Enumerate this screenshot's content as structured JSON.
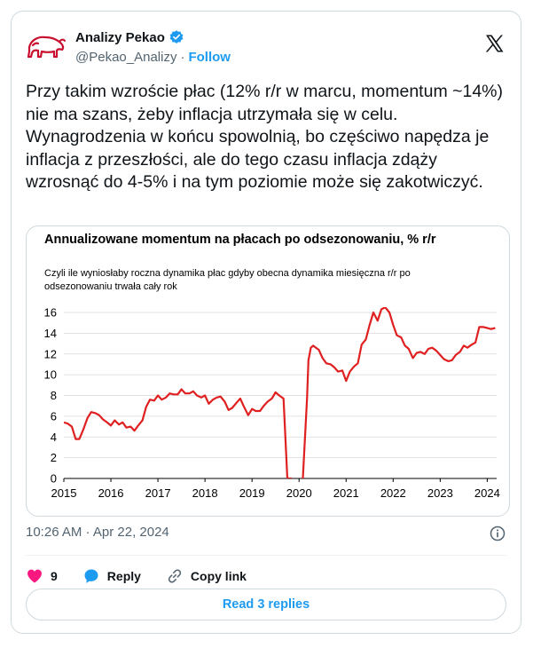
{
  "author": {
    "name": "Analizy Pekao",
    "handle": "@Pekao_Analizy",
    "separator": "·",
    "follow_label": "Follow",
    "verified": true,
    "brand_color": "#c8102e"
  },
  "tweet": {
    "text": "Przy takim wzroście płac (12% r/r w marcu, momentum ~14%) nie ma szans, żeby inflacja utrzymała się w celu. Wynagrodzenia w końcu spowolnią, bo częściwo napędza je inflacja z przeszłości, ale do tego czasu inflacja zdąży wzrosnąć do 4-5% i na tym poziomie może się zakotwiczyć.",
    "timestamp": "10:26 AM · Apr 22, 2024"
  },
  "actions": {
    "likes": "9",
    "reply_label": "Reply",
    "copy_link_label": "Copy link",
    "read_replies_label": "Read 3 replies"
  },
  "chart_data": {
    "type": "line",
    "title": "Annualizowane momentum na płacach po odsezonowaniu, % r/r",
    "subtitle": "Czyli ile wyniosłaby roczna dynamika płac gdyby obecna dynamika miesięczna r/r po odsezonowaniu trwała cały rok",
    "xlabel": "",
    "ylabel": "",
    "ylim": [
      0,
      16
    ],
    "xlim": [
      2015,
      2024.2
    ],
    "yticks": [
      "0",
      "2",
      "4",
      "6",
      "8",
      "10",
      "12",
      "14",
      "16"
    ],
    "xticks": [
      "2015",
      "2016",
      "2017",
      "2018",
      "2019",
      "2020",
      "2021",
      "2022",
      "2023",
      "2024"
    ],
    "grid": true,
    "color": "#e02020",
    "series": [
      {
        "x": [
          2015.0,
          2015.08,
          2015.17,
          2015.25,
          2015.33,
          2015.42,
          2015.5,
          2015.58,
          2015.67,
          2015.75,
          2015.83,
          2015.92,
          2016.0,
          2016.08,
          2016.17,
          2016.25,
          2016.33,
          2016.42,
          2016.5,
          2016.58,
          2016.67,
          2016.75,
          2016.83,
          2016.92,
          2017.0,
          2017.08,
          2017.17,
          2017.25,
          2017.33,
          2017.42,
          2017.5,
          2017.58,
          2017.67,
          2017.75,
          2017.83,
          2017.92,
          2018.0,
          2018.08,
          2018.17,
          2018.25,
          2018.33,
          2018.42,
          2018.5,
          2018.58,
          2018.67,
          2018.75,
          2018.83,
          2018.92,
          2019.0,
          2019.08,
          2019.17,
          2019.25,
          2019.33,
          2019.42,
          2019.5,
          2019.58,
          2019.67,
          2019.75,
          2019.83,
          2019.92,
          2020.0,
          2020.08,
          2020.17,
          2020.2,
          2020.25,
          2020.3,
          2020.33,
          2020.42,
          2020.5,
          2020.58,
          2020.67,
          2020.75,
          2020.83,
          2020.92,
          2021.0,
          2021.08,
          2021.17,
          2021.25,
          2021.33,
          2021.42,
          2021.5,
          2021.58,
          2021.67,
          2021.75,
          2021.83,
          2021.92,
          2022.0,
          2022.08,
          2022.17,
          2022.25,
          2022.33,
          2022.42,
          2022.5,
          2022.58,
          2022.67,
          2022.75,
          2022.83,
          2022.92,
          2023.0,
          2023.08,
          2023.17,
          2023.25,
          2023.33,
          2023.42,
          2023.5,
          2023.58,
          2023.67,
          2023.75,
          2023.83,
          2023.92,
          2024.0,
          2024.08,
          2024.17
        ],
        "y": [
          5.4,
          5.3,
          5.0,
          3.8,
          3.8,
          4.8,
          5.8,
          6.4,
          6.3,
          6.1,
          5.7,
          5.4,
          5.1,
          5.6,
          5.2,
          5.4,
          4.9,
          5.0,
          4.6,
          5.1,
          5.6,
          6.9,
          7.6,
          7.5,
          8.0,
          7.6,
          7.8,
          8.2,
          8.1,
          8.1,
          8.6,
          8.2,
          8.2,
          8.4,
          8.0,
          7.8,
          8.0,
          7.2,
          7.6,
          7.8,
          7.9,
          7.4,
          6.6,
          6.8,
          7.3,
          7.7,
          6.9,
          6.1,
          6.7,
          6.5,
          6.5,
          7.0,
          7.4,
          7.7,
          8.3,
          8.0,
          7.7,
          0.0,
          0.0,
          -2.0,
          -2.0,
          0.0,
          7.7,
          11.4,
          12.6,
          12.8,
          12.7,
          12.4,
          11.6,
          11.1,
          11.0,
          10.7,
          10.3,
          10.4,
          9.4,
          10.3,
          10.8,
          11.1,
          12.9,
          13.4,
          14.8,
          16.0,
          15.2,
          16.3,
          16.5,
          16.0,
          14.8,
          13.8,
          13.6,
          12.8,
          12.5,
          11.6,
          12.1,
          12.2,
          12.0,
          12.5,
          12.6,
          12.3,
          11.9,
          11.5,
          11.3,
          11.4,
          11.9,
          12.2,
          12.8,
          12.6,
          12.9,
          13.1,
          14.6,
          14.6,
          14.5,
          14.4,
          14.5
        ]
      }
    ]
  }
}
